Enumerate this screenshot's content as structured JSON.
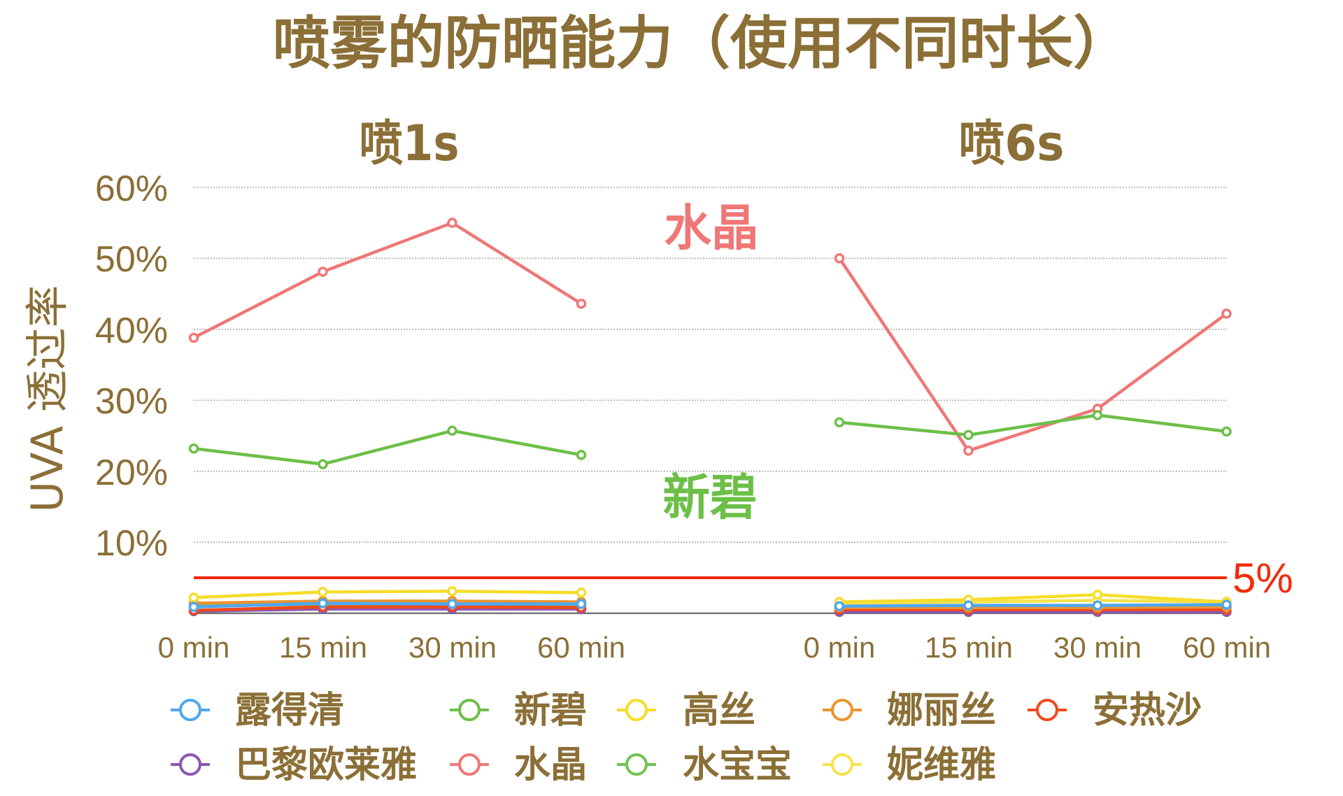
{
  "chart_data": {
    "type": "line",
    "title": "喷雾的防晒能力（使用不同时长）",
    "xlabel": "",
    "ylabel": "UVA 透过率",
    "ylim": [
      0,
      60
    ],
    "yticks": [
      10,
      20,
      30,
      40,
      50,
      60
    ],
    "ytick_labels": [
      "10%",
      "20%",
      "30%",
      "40%",
      "50%",
      "60%"
    ],
    "grid": "horizontal dotted",
    "legend_position": "bottom",
    "categories": [
      "0 min",
      "15 min",
      "30 min",
      "60 min"
    ],
    "reference_line": {
      "value": 5,
      "label": "5%",
      "color": "#f32a0c"
    },
    "annotations": [
      {
        "text": "水晶",
        "color": "#ef7776"
      },
      {
        "text": "新碧",
        "color": "#6cbf47"
      }
    ],
    "legend": [
      {
        "name": "露得清",
        "color": "#4fa7f0"
      },
      {
        "name": "新碧",
        "color": "#6cbf47"
      },
      {
        "name": "高丝",
        "color": "#f7dd2a"
      },
      {
        "name": "娜丽丝",
        "color": "#ea9430"
      },
      {
        "name": "安热沙",
        "color": "#ef4a1c"
      },
      {
        "name": "巴黎欧莱雅",
        "color": "#8a57b4"
      },
      {
        "name": "水晶",
        "color": "#ef7776"
      },
      {
        "name": "水宝宝",
        "color": "#72c255"
      },
      {
        "name": "妮维雅",
        "color": "#f8e24c"
      }
    ],
    "panels": [
      {
        "title": "喷1s",
        "series": [
          {
            "name": "露得清",
            "values": [
              0.9,
              1.4,
              1.3,
              1.3
            ]
          },
          {
            "name": "新碧",
            "values": [
              23.2,
              21.0,
              25.7,
              22.3
            ]
          },
          {
            "name": "高丝",
            "values": [
              2.2,
              3.0,
              3.1,
              2.9
            ]
          },
          {
            "name": "娜丽丝",
            "values": [
              1.4,
              1.7,
              1.7,
              1.6
            ]
          },
          {
            "name": "安热沙",
            "values": [
              0.4,
              0.9,
              0.9,
              0.8
            ]
          },
          {
            "name": "巴黎欧莱雅",
            "values": [
              0.3,
              0.6,
              0.6,
              0.6
            ]
          },
          {
            "name": "水晶",
            "values": [
              38.8,
              48.1,
              55.0,
              43.6
            ]
          },
          {
            "name": "水宝宝",
            "values": [
              1.0,
              1.3,
              1.3,
              1.2
            ]
          },
          {
            "name": "妮维雅",
            "values": [
              1.2,
              1.6,
              1.6,
              1.5
            ]
          }
        ]
      },
      {
        "title": "喷6s",
        "series": [
          {
            "name": "露得清",
            "values": [
              1.0,
              1.1,
              1.1,
              1.2
            ]
          },
          {
            "name": "新碧",
            "values": [
              26.9,
              25.1,
              27.9,
              25.6
            ]
          },
          {
            "name": "高丝",
            "values": [
              1.6,
              1.9,
              2.6,
              1.6
            ]
          },
          {
            "name": "娜丽丝",
            "values": [
              0.8,
              0.8,
              0.8,
              0.9
            ]
          },
          {
            "name": "安热沙",
            "values": [
              0.5,
              0.5,
              0.5,
              0.5
            ]
          },
          {
            "name": "巴黎欧莱雅",
            "values": [
              0.2,
              0.2,
              0.2,
              0.2
            ]
          },
          {
            "name": "水晶",
            "values": [
              50.0,
              22.9,
              28.8,
              42.2
            ]
          },
          {
            "name": "水宝宝",
            "values": [
              0.9,
              1.0,
              1.0,
              1.0
            ]
          },
          {
            "name": "妮维雅",
            "values": [
              1.4,
              1.6,
              1.8,
              1.6
            ]
          }
        ]
      }
    ]
  }
}
